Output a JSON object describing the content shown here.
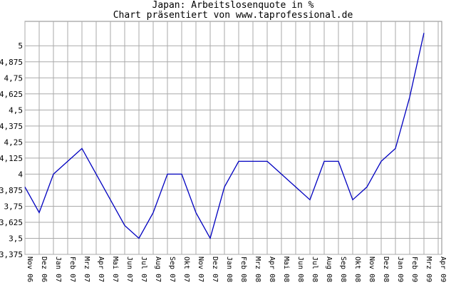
{
  "chart_data": {
    "type": "line",
    "title": "Japan: Arbeitslosenquote in %",
    "subtitle": "Chart präsentiert von www.taprofessional.de",
    "categories": [
      "Nov 06",
      "Dez 06",
      "Jan 07",
      "Feb 07",
      "Mrz 07",
      "Apr 07",
      "Mai 07",
      "Jun 07",
      "Jul 07",
      "Aug 07",
      "Sep 07",
      "Okt 07",
      "Nov 07",
      "Dez 07",
      "Jan 08",
      "Feb 08",
      "Mrz 08",
      "Apr 08",
      "Mai 08",
      "Jun 08",
      "Jul 08",
      "Aug 08",
      "Sep 08",
      "Okt 08",
      "Nov 08",
      "Dez 08",
      "Jan 09",
      "Feb 09",
      "Mrz 09",
      "Apr 09"
    ],
    "series": [
      {
        "color": "#0000c0",
        "values": [
          3.9,
          3.7,
          4.0,
          4.1,
          4.2,
          4.0,
          3.8,
          3.6,
          3.5,
          3.7,
          4.0,
          4.0,
          3.7,
          3.5,
          3.9,
          4.1,
          4.1,
          4.1,
          4.0,
          3.9,
          3.8,
          4.1,
          4.1,
          3.8,
          3.9,
          4.1,
          4.2,
          4.6,
          5.1,
          null
        ]
      }
    ],
    "ylim": [
      3.375,
      5.19
    ],
    "yticks": [
      {
        "value": 3.375,
        "label": "3,375"
      },
      {
        "value": 3.5,
        "label": "3,5"
      },
      {
        "value": 3.625,
        "label": "3,625"
      },
      {
        "value": 3.75,
        "label": "3,75"
      },
      {
        "value": 3.875,
        "label": "3,875"
      },
      4,
      {
        "value": 4.125,
        "label": "4,125"
      },
      {
        "value": 4.25,
        "label": "4,25"
      },
      {
        "value": 4.375,
        "label": "4,375"
      },
      {
        "value": 4.5,
        "label": "4,5"
      },
      {
        "value": 4.625,
        "label": "4,625"
      },
      {
        "value": 4.75,
        "label": "4,75"
      },
      {
        "value": 4.875,
        "label": "4,875"
      },
      5
    ],
    "grid": true
  }
}
